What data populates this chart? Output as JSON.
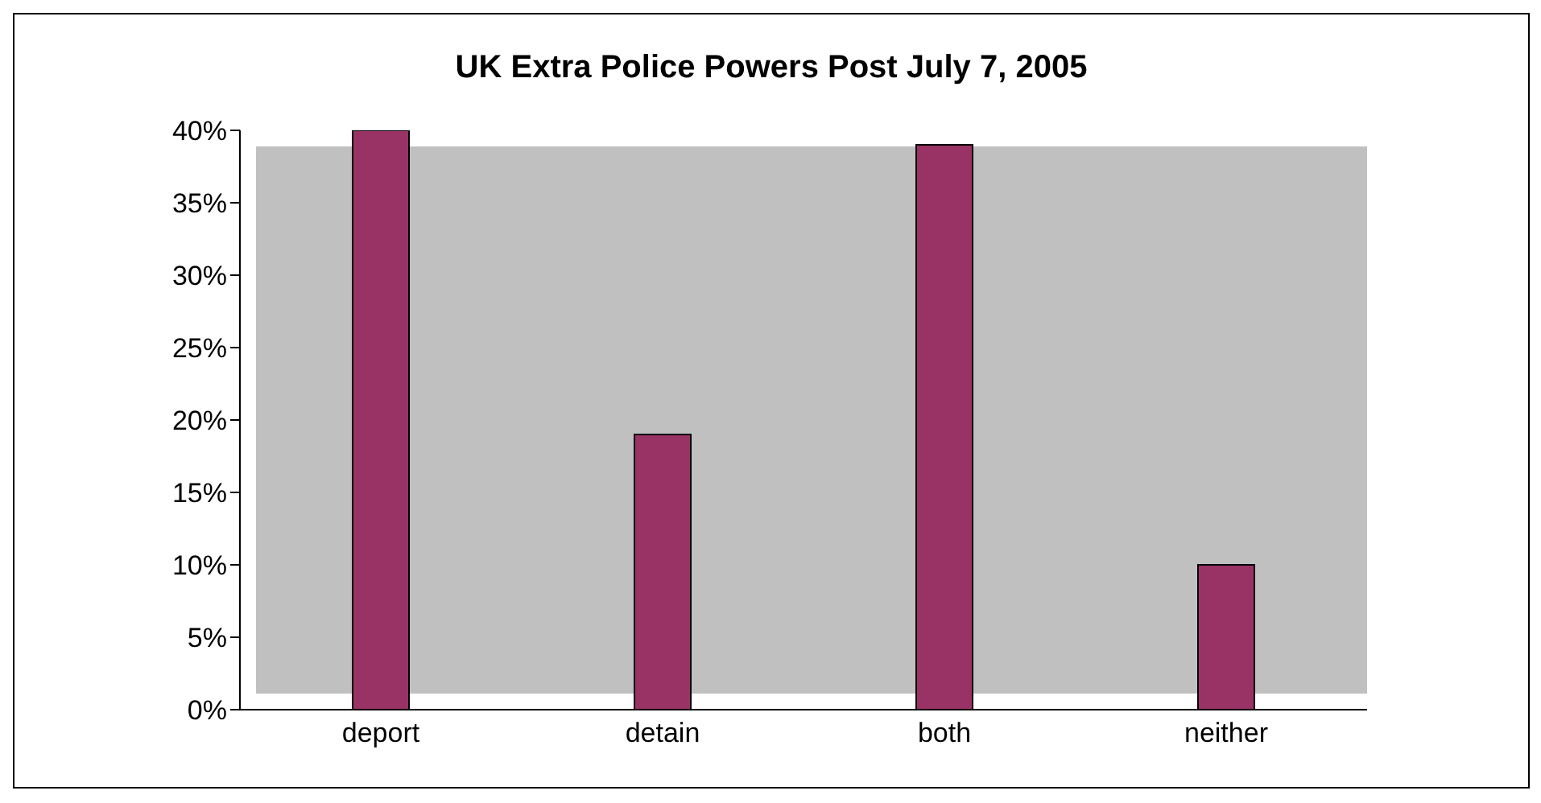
{
  "chart_data": {
    "type": "bar",
    "title": "UK Extra Police Powers Post July 7, 2005",
    "categories": [
      "deport",
      "detain",
      "both",
      "neither"
    ],
    "values": [
      40,
      19,
      39,
      10
    ],
    "color": "#993366",
    "ylim": [
      0,
      40
    ],
    "yticks": [
      {
        "value": 0,
        "label": "0%"
      },
      {
        "value": 5,
        "label": "5%"
      },
      {
        "value": 10,
        "label": "10%"
      },
      {
        "value": 15,
        "label": "15%"
      },
      {
        "value": 20,
        "label": "20%"
      },
      {
        "value": 25,
        "label": "25%"
      },
      {
        "value": 30,
        "label": "30%"
      },
      {
        "value": 35,
        "label": "35%"
      },
      {
        "value": 40,
        "label": "40%"
      }
    ],
    "grid": false,
    "legend": false
  }
}
